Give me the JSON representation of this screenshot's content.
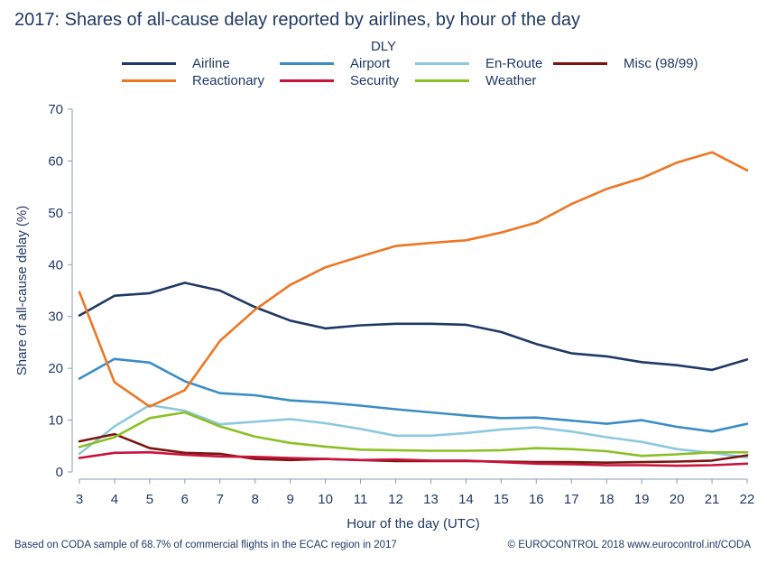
{
  "title": "2017: Shares of all-cause delay reported by airlines, by hour of the day",
  "legend_title": "DLY",
  "footer": {
    "left": "Based on CODA sample of 68.7% of commercial flights in the ECAC region in 2017",
    "right": "© EUROCONTROL 2018 www.eurocontrol.int/CODA"
  },
  "chart_data": {
    "type": "line",
    "title": "2017: Shares of all-cause delay reported by airlines, by hour of the day",
    "xlabel": "Hour of the day (UTC)",
    "ylabel": "Share of all-cause delay (%)",
    "x": [
      3,
      4,
      5,
      6,
      7,
      8,
      9,
      10,
      11,
      12,
      13,
      14,
      15,
      16,
      17,
      18,
      19,
      20,
      21,
      22
    ],
    "xlim": [
      3,
      22
    ],
    "ylim": [
      0,
      70
    ],
    "yticks": [
      0,
      10,
      20,
      30,
      40,
      50,
      60,
      70
    ],
    "grid": false,
    "legend_position": "top",
    "series": [
      {
        "name": "Airline",
        "color": "#1f3864",
        "values": [
          30.2,
          34.0,
          34.5,
          36.5,
          35.0,
          31.8,
          29.2,
          27.7,
          28.3,
          28.6,
          28.6,
          28.4,
          27.0,
          24.7,
          22.9,
          22.3,
          21.2,
          20.6,
          19.7,
          21.7
        ]
      },
      {
        "name": "Airport",
        "color": "#3a8dc4",
        "values": [
          18.0,
          21.8,
          21.1,
          17.5,
          15.2,
          14.8,
          13.8,
          13.4,
          12.8,
          12.1,
          11.5,
          10.9,
          10.4,
          10.5,
          9.9,
          9.3,
          10.0,
          8.7,
          7.8,
          9.3
        ]
      },
      {
        "name": "En-Route",
        "color": "#8ec8de",
        "values": [
          3.5,
          8.8,
          12.9,
          11.8,
          9.2,
          9.7,
          10.2,
          9.4,
          8.3,
          7.0,
          7.0,
          7.5,
          8.2,
          8.6,
          7.8,
          6.7,
          5.8,
          4.4,
          3.7,
          2.8
        ]
      },
      {
        "name": "Misc (98/99)",
        "color": "#7b1510",
        "values": [
          5.9,
          7.3,
          4.6,
          3.7,
          3.5,
          2.5,
          2.3,
          2.5,
          2.3,
          2.1,
          2.1,
          2.1,
          2.0,
          1.9,
          1.9,
          1.8,
          1.9,
          2.0,
          2.2,
          3.2
        ]
      },
      {
        "name": "Reactionary",
        "color": "#ee7623",
        "values": [
          34.7,
          17.3,
          12.6,
          15.8,
          25.3,
          31.3,
          36.1,
          39.5,
          41.6,
          43.6,
          44.2,
          44.7,
          46.2,
          48.1,
          51.7,
          54.6,
          56.7,
          59.7,
          61.7,
          58.2
        ]
      },
      {
        "name": "Security",
        "color": "#c8143c",
        "values": [
          2.7,
          3.7,
          3.8,
          3.3,
          3.0,
          2.9,
          2.7,
          2.5,
          2.3,
          2.4,
          2.2,
          2.2,
          1.9,
          1.6,
          1.5,
          1.3,
          1.3,
          1.2,
          1.3,
          1.6
        ]
      },
      {
        "name": "Weather",
        "color": "#8cbf26",
        "values": [
          4.8,
          6.7,
          10.4,
          11.5,
          8.8,
          6.8,
          5.6,
          4.9,
          4.3,
          4.2,
          4.1,
          4.1,
          4.2,
          4.6,
          4.4,
          4.0,
          3.1,
          3.4,
          3.8,
          3.8
        ]
      }
    ]
  }
}
